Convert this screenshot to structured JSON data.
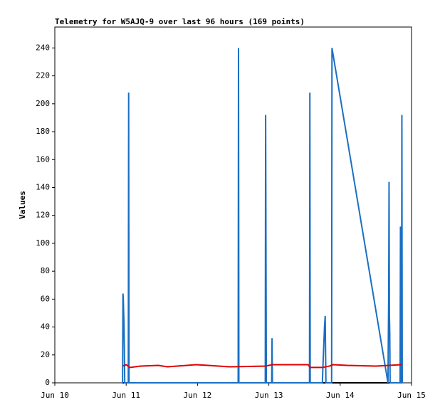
{
  "chart_data": {
    "type": "line",
    "title": "Telemetry for W5AJQ-9 over last 96 hours (169 points)",
    "y_label": "Values",
    "xlim": [
      10,
      15
    ],
    "xticks": [
      {
        "value": 10,
        "label": "Jun 10"
      },
      {
        "value": 11,
        "label": "Jun 11"
      },
      {
        "value": 12,
        "label": "Jun 12"
      },
      {
        "value": 13,
        "label": "Jun 13"
      },
      {
        "value": 14,
        "label": "Jun 14"
      },
      {
        "value": 15,
        "label": "Jun 15"
      }
    ],
    "ylim": [
      0,
      255
    ],
    "yticks": [
      0,
      20,
      40,
      60,
      80,
      100,
      120,
      140,
      160,
      180,
      200,
      220,
      240
    ],
    "grid": false,
    "series": [
      {
        "color": "#000000",
        "x": [
          10.95,
          14.87
        ],
        "values": [
          0,
          0
        ]
      },
      {
        "color": "#1a6fc4",
        "x": [
          10.95,
          10.955,
          10.96,
          10.965,
          10.97,
          10.975,
          10.98,
          11.03,
          11.035,
          11.04,
          12.57,
          12.575,
          12.58,
          12.95,
          12.955,
          12.96,
          12.965,
          13.04,
          13.045,
          13.05,
          13.57,
          13.575,
          13.58,
          13.75,
          13.76,
          13.78,
          13.79,
          13.8,
          13.88,
          13.885,
          14.67,
          14.68,
          14.685,
          14.69,
          14.695,
          14.7,
          14.84,
          14.845,
          14.85,
          14.86,
          14.865,
          14.87
        ],
        "values": [
          0,
          64,
          60,
          50,
          42,
          24,
          0,
          0,
          208,
          0,
          0,
          240,
          0,
          0,
          192,
          96,
          0,
          0,
          32,
          0,
          0,
          208,
          0,
          0,
          14,
          40,
          48,
          0,
          0,
          240,
          0,
          64,
          144,
          48,
          36,
          0,
          0,
          112,
          0,
          0,
          192,
          0
        ]
      },
      {
        "color": "#e00000",
        "x": [
          10.95,
          11.0,
          11.05,
          11.2,
          11.45,
          11.58,
          11.98,
          12.15,
          12.45,
          12.95,
          13.05,
          13.55,
          13.58,
          13.75,
          13.85,
          13.9,
          14.1,
          14.5,
          14.86
        ],
        "values": [
          12,
          13,
          11,
          12,
          12.5,
          11.5,
          13,
          12.5,
          11.5,
          12,
          13,
          13,
          11,
          11,
          12,
          13,
          12.5,
          12,
          13
        ]
      }
    ]
  }
}
